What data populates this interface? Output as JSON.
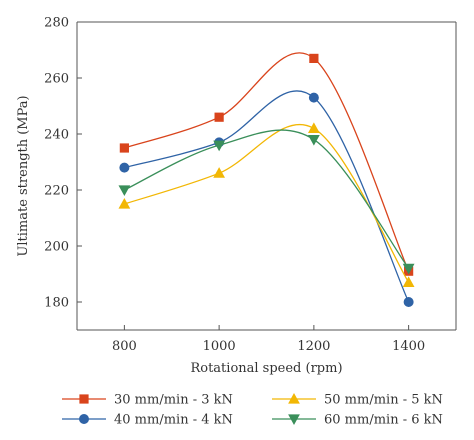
{
  "chart_data": {
    "type": "line",
    "xlabel": "Rotational speed (rpm)",
    "ylabel": "Ultimate strength (MPa)",
    "x": [
      800,
      1000,
      1200,
      1400
    ],
    "xlim": [
      700,
      1500
    ],
    "ylim": [
      170,
      280
    ],
    "xticks": [
      800,
      1000,
      1200,
      1400
    ],
    "yticks": [
      180,
      200,
      220,
      240,
      260,
      280
    ],
    "grid": false,
    "legend_placement": "bottom",
    "series": [
      {
        "name": "30 mm/min - 3 kN",
        "values": [
          235,
          246,
          267,
          191
        ],
        "color": "#d9441c",
        "marker": "square"
      },
      {
        "name": "40 mm/min - 4 kN",
        "values": [
          228,
          237,
          253,
          180
        ],
        "color": "#2f63a6",
        "marker": "circle"
      },
      {
        "name": "50 mm/min - 5 kN",
        "values": [
          215,
          226,
          242,
          187
        ],
        "color": "#f2b705",
        "marker": "triangle-up"
      },
      {
        "name": "60 mm/min - 6 kN",
        "values": [
          220,
          236,
          238,
          192
        ],
        "color": "#3a8f5a",
        "marker": "triangle-down"
      }
    ]
  }
}
